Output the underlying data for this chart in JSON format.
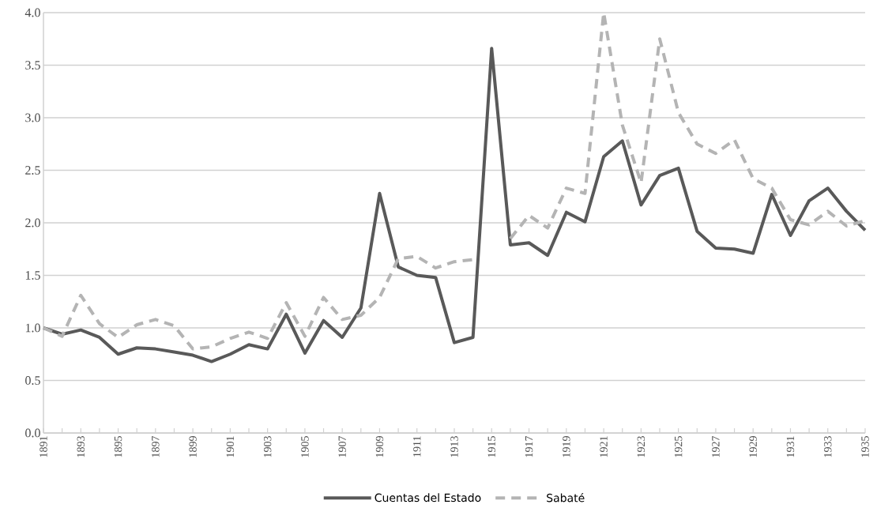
{
  "chart_data": {
    "type": "line",
    "x": [
      1891,
      1892,
      1893,
      1894,
      1895,
      1896,
      1897,
      1898,
      1899,
      1900,
      1901,
      1902,
      1903,
      1904,
      1905,
      1906,
      1907,
      1908,
      1909,
      1910,
      1911,
      1912,
      1913,
      1914,
      1915,
      1916,
      1917,
      1918,
      1919,
      1920,
      1921,
      1922,
      1923,
      1924,
      1925,
      1926,
      1927,
      1928,
      1929,
      1930,
      1931,
      1932,
      1933,
      1934,
      1935
    ],
    "series": [
      {
        "name": "Cuentas del Estado",
        "color": "#595959",
        "line_style": "solid",
        "values": [
          1.0,
          0.94,
          0.98,
          0.91,
          0.75,
          0.81,
          0.8,
          0.77,
          0.74,
          0.68,
          0.75,
          0.84,
          0.8,
          1.13,
          0.76,
          1.07,
          0.91,
          1.19,
          2.28,
          1.58,
          1.5,
          1.48,
          0.86,
          0.91,
          3.66,
          1.79,
          1.81,
          1.69,
          2.1,
          2.01,
          2.63,
          2.78,
          2.17,
          2.45,
          2.52,
          1.92,
          1.76,
          1.75,
          1.71,
          2.27,
          1.88,
          2.21,
          2.33,
          2.11,
          1.93
        ]
      },
      {
        "name": "Sabaté",
        "color": "#b4b4b4",
        "line_style": "dashed",
        "values": [
          1.0,
          0.92,
          1.31,
          1.04,
          0.91,
          1.03,
          1.08,
          1.02,
          0.8,
          0.82,
          0.9,
          0.96,
          0.9,
          1.24,
          0.92,
          1.29,
          1.08,
          1.12,
          1.29,
          1.66,
          1.68,
          1.57,
          1.63,
          1.65,
          null,
          1.85,
          2.07,
          1.95,
          2.33,
          2.28,
          4.0,
          2.93,
          2.38,
          3.75,
          3.05,
          2.75,
          2.66,
          2.79,
          2.42,
          2.33,
          2.03,
          1.98,
          2.11,
          1.97,
          2.02
        ]
      }
    ],
    "xlim": [
      1891,
      1935
    ],
    "xticks": [
      1891,
      {
        "value": 1892,
        "label": null
      },
      1893,
      {
        "value": 1894,
        "label": null
      },
      1895,
      {
        "value": 1896,
        "label": null
      },
      1897,
      {
        "value": 1898,
        "label": null
      },
      1899,
      {
        "value": 1900,
        "label": null
      },
      1901,
      {
        "value": 1902,
        "label": null
      },
      1903,
      {
        "value": 1904,
        "label": null
      },
      1905,
      {
        "value": 1906,
        "label": null
      },
      1907,
      {
        "value": 1908,
        "label": null
      },
      1909,
      {
        "value": 1910,
        "label": null
      },
      1911,
      {
        "value": 1912,
        "label": null
      },
      1913,
      {
        "value": 1914,
        "label": null
      },
      1915,
      {
        "value": 1916,
        "label": null
      },
      1917,
      {
        "value": 1918,
        "label": null
      },
      1919,
      {
        "value": 1920,
        "label": null
      },
      1921,
      {
        "value": 1922,
        "label": null
      },
      1923,
      {
        "value": 1924,
        "label": null
      },
      1925,
      {
        "value": 1926,
        "label": null
      },
      1927,
      {
        "value": 1928,
        "label": null
      },
      1929,
      {
        "value": 1930,
        "label": null
      },
      1931,
      {
        "value": 1932,
        "label": null
      },
      1933,
      {
        "value": 1934,
        "label": null
      },
      1935
    ],
    "ylim": [
      0,
      4.0
    ],
    "yticks": [
      {
        "value": 0,
        "label": "0.0"
      },
      {
        "value": 0.5,
        "label": "0.5"
      },
      {
        "value": 1,
        "label": "1.0"
      },
      {
        "value": 1.5,
        "label": "1.5"
      },
      {
        "value": 2,
        "label": "2.0"
      },
      {
        "value": 2.5,
        "label": "2.5"
      },
      {
        "value": 3,
        "label": "3.0"
      },
      {
        "value": 3.5,
        "label": "3.5"
      },
      {
        "value": 4,
        "label": "4.0"
      }
    ],
    "grid": "y",
    "legend": "bottom",
    "marker": "none"
  }
}
